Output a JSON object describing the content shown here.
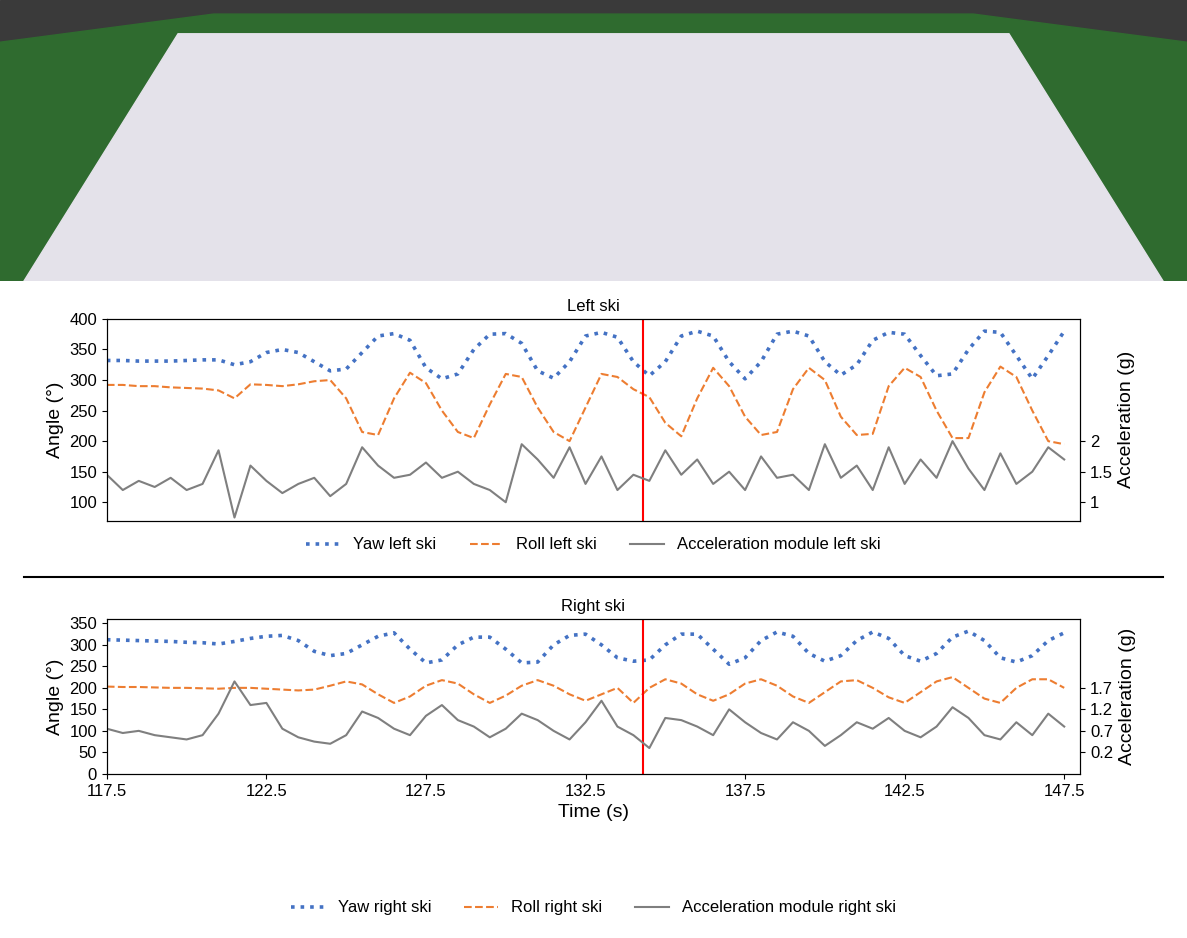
{
  "chart_data": [
    {
      "type": "line",
      "title": "Left ski",
      "ylabel": "Angle (°)",
      "y2label": "Acceleration (g)",
      "tick_labels": "y",
      "grid": false,
      "legend": "lower center",
      "xlim": [
        117.5,
        148
      ],
      "ylim": [
        70,
        400
      ],
      "yticks": [
        100,
        150,
        200,
        250,
        300,
        350,
        400
      ],
      "y2lim": [
        0.7,
        4.0
      ],
      "y2ticks": [
        1,
        1.5,
        2
      ],
      "highlight_x": 134.3,
      "x": [
        117.5,
        118,
        118.5,
        119,
        119.5,
        120,
        120.5,
        121,
        121.5,
        122,
        122.5,
        123,
        123.5,
        124,
        124.5,
        125,
        125.5,
        126,
        126.5,
        127,
        127.5,
        128,
        128.5,
        129,
        129.5,
        130,
        130.5,
        131,
        131.5,
        132,
        132.5,
        133,
        133.5,
        134,
        134.5,
        135,
        135.5,
        136,
        136.5,
        137,
        137.5,
        138,
        138.5,
        139,
        139.5,
        140,
        140.5,
        141,
        141.5,
        142,
        142.5,
        143,
        143.5,
        144,
        144.5,
        145,
        145.5,
        146,
        146.5,
        147,
        147.5
      ],
      "series": [
        {
          "name": "Yaw left ski",
          "color": "#4472c4",
          "line_style": "dotted",
          "axis": "y",
          "values": [
            332,
            332,
            331,
            331,
            331,
            332,
            333,
            333,
            325,
            330,
            345,
            350,
            345,
            330,
            315,
            318,
            345,
            372,
            376,
            365,
            320,
            302,
            310,
            350,
            375,
            376,
            360,
            315,
            303,
            330,
            372,
            378,
            370,
            330,
            307,
            330,
            372,
            380,
            372,
            330,
            302,
            330,
            375,
            380,
            372,
            330,
            308,
            325,
            365,
            378,
            375,
            340,
            307,
            310,
            350,
            380,
            378,
            340,
            302,
            340,
            380
          ]
        },
        {
          "name": "Roll left ski",
          "color": "#ed7d31",
          "line_style": "dashed",
          "axis": "y",
          "values": [
            292,
            292,
            290,
            290,
            288,
            287,
            286,
            283,
            270,
            293,
            292,
            290,
            293,
            298,
            300,
            270,
            215,
            210,
            270,
            312,
            295,
            250,
            215,
            205,
            260,
            310,
            305,
            255,
            215,
            200,
            255,
            310,
            305,
            285,
            272,
            230,
            208,
            270,
            320,
            290,
            240,
            210,
            215,
            285,
            320,
            300,
            240,
            210,
            212,
            290,
            320,
            305,
            250,
            205,
            205,
            280,
            322,
            305,
            250,
            200,
            195
          ]
        },
        {
          "name": "Acceleration module left ski",
          "color": "#7f7f7f",
          "line_style": "solid",
          "axis": "y2",
          "values": [
            1.45,
            1.2,
            1.35,
            1.25,
            1.4,
            1.2,
            1.3,
            1.85,
            0.75,
            1.6,
            1.35,
            1.15,
            1.3,
            1.4,
            1.1,
            1.3,
            1.9,
            1.6,
            1.4,
            1.45,
            1.65,
            1.4,
            1.5,
            1.3,
            1.2,
            1.0,
            1.95,
            1.7,
            1.4,
            1.9,
            1.3,
            1.75,
            1.2,
            1.45,
            1.35,
            1.85,
            1.45,
            1.7,
            1.3,
            1.5,
            1.2,
            1.75,
            1.4,
            1.45,
            1.2,
            1.95,
            1.4,
            1.6,
            1.2,
            1.9,
            1.3,
            1.7,
            1.4,
            2.0,
            1.55,
            1.2,
            1.8,
            1.3,
            1.5,
            1.9,
            1.7
          ]
        }
      ]
    },
    {
      "type": "line",
      "title": "Right ski",
      "ylabel": "Angle (°)",
      "y2label": "Acceleration (g)",
      "xlabel": "Time (s)",
      "grid": false,
      "legend": "lower center",
      "xlim": [
        117.5,
        148
      ],
      "xticks": [
        117.5,
        122.5,
        127.5,
        132.5,
        137.5,
        142.5,
        147.5
      ],
      "ylim": [
        0,
        360
      ],
      "yticks": [
        0,
        50,
        100,
        150,
        200,
        250,
        300,
        350
      ],
      "y2lim": [
        -0.3,
        3.3
      ],
      "y2ticks": [
        0.2,
        0.7,
        1.2,
        1.7
      ],
      "highlight_x": 134.3,
      "x": [
        117.5,
        118,
        118.5,
        119,
        119.5,
        120,
        120.5,
        121,
        121.5,
        122,
        122.5,
        123,
        123.5,
        124,
        124.5,
        125,
        125.5,
        126,
        126.5,
        127,
        127.5,
        128,
        128.5,
        129,
        129.5,
        130,
        130.5,
        131,
        131.5,
        132,
        132.5,
        133,
        133.5,
        134,
        134.5,
        135,
        135.5,
        136,
        136.5,
        137,
        137.5,
        138,
        138.5,
        139,
        139.5,
        140,
        140.5,
        141,
        141.5,
        142,
        142.5,
        143,
        143.5,
        144,
        144.5,
        145,
        145.5,
        146,
        146.5,
        147,
        147.5
      ],
      "series": [
        {
          "name": "Yaw right ski",
          "color": "#4472c4",
          "line_style": "dotted",
          "axis": "y",
          "values": [
            312,
            311,
            310,
            309,
            308,
            306,
            305,
            302,
            308,
            315,
            320,
            322,
            310,
            285,
            275,
            280,
            300,
            320,
            328,
            290,
            258,
            265,
            300,
            318,
            318,
            290,
            258,
            260,
            300,
            322,
            325,
            300,
            270,
            262,
            265,
            300,
            325,
            325,
            290,
            255,
            270,
            310,
            330,
            320,
            280,
            262,
            275,
            310,
            330,
            315,
            275,
            262,
            280,
            318,
            332,
            310,
            270,
            260,
            275,
            310,
            328
          ]
        },
        {
          "name": "Roll right ski",
          "color": "#ed7d31",
          "line_style": "dashed",
          "axis": "y",
          "values": [
            203,
            202,
            202,
            201,
            200,
            200,
            199,
            198,
            200,
            200,
            198,
            196,
            194,
            196,
            205,
            215,
            208,
            185,
            165,
            180,
            205,
            218,
            210,
            185,
            165,
            182,
            205,
            218,
            205,
            185,
            170,
            185,
            200,
            165,
            200,
            220,
            210,
            185,
            170,
            185,
            210,
            220,
            205,
            180,
            165,
            190,
            215,
            218,
            200,
            178,
            165,
            190,
            215,
            225,
            200,
            175,
            165,
            200,
            220,
            220,
            200
          ]
        },
        {
          "name": "Acceleration module right ski",
          "color": "#7f7f7f",
          "line_style": "solid",
          "axis": "y2",
          "values": [
            0.75,
            0.65,
            0.7,
            0.6,
            0.55,
            0.5,
            0.6,
            1.1,
            1.85,
            1.3,
            1.35,
            0.75,
            0.55,
            0.45,
            0.4,
            0.6,
            1.15,
            1.0,
            0.75,
            0.6,
            1.05,
            1.3,
            0.95,
            0.8,
            0.55,
            0.75,
            1.1,
            0.95,
            0.7,
            0.5,
            0.9,
            1.4,
            0.8,
            0.6,
            0.3,
            1.0,
            0.95,
            0.8,
            0.6,
            1.2,
            0.9,
            0.65,
            0.5,
            0.9,
            0.7,
            0.35,
            0.6,
            0.9,
            0.75,
            1.0,
            0.7,
            0.55,
            0.8,
            1.25,
            1.0,
            0.6,
            0.5,
            0.9,
            0.6,
            1.1,
            0.8
          ]
        }
      ]
    }
  ]
}
